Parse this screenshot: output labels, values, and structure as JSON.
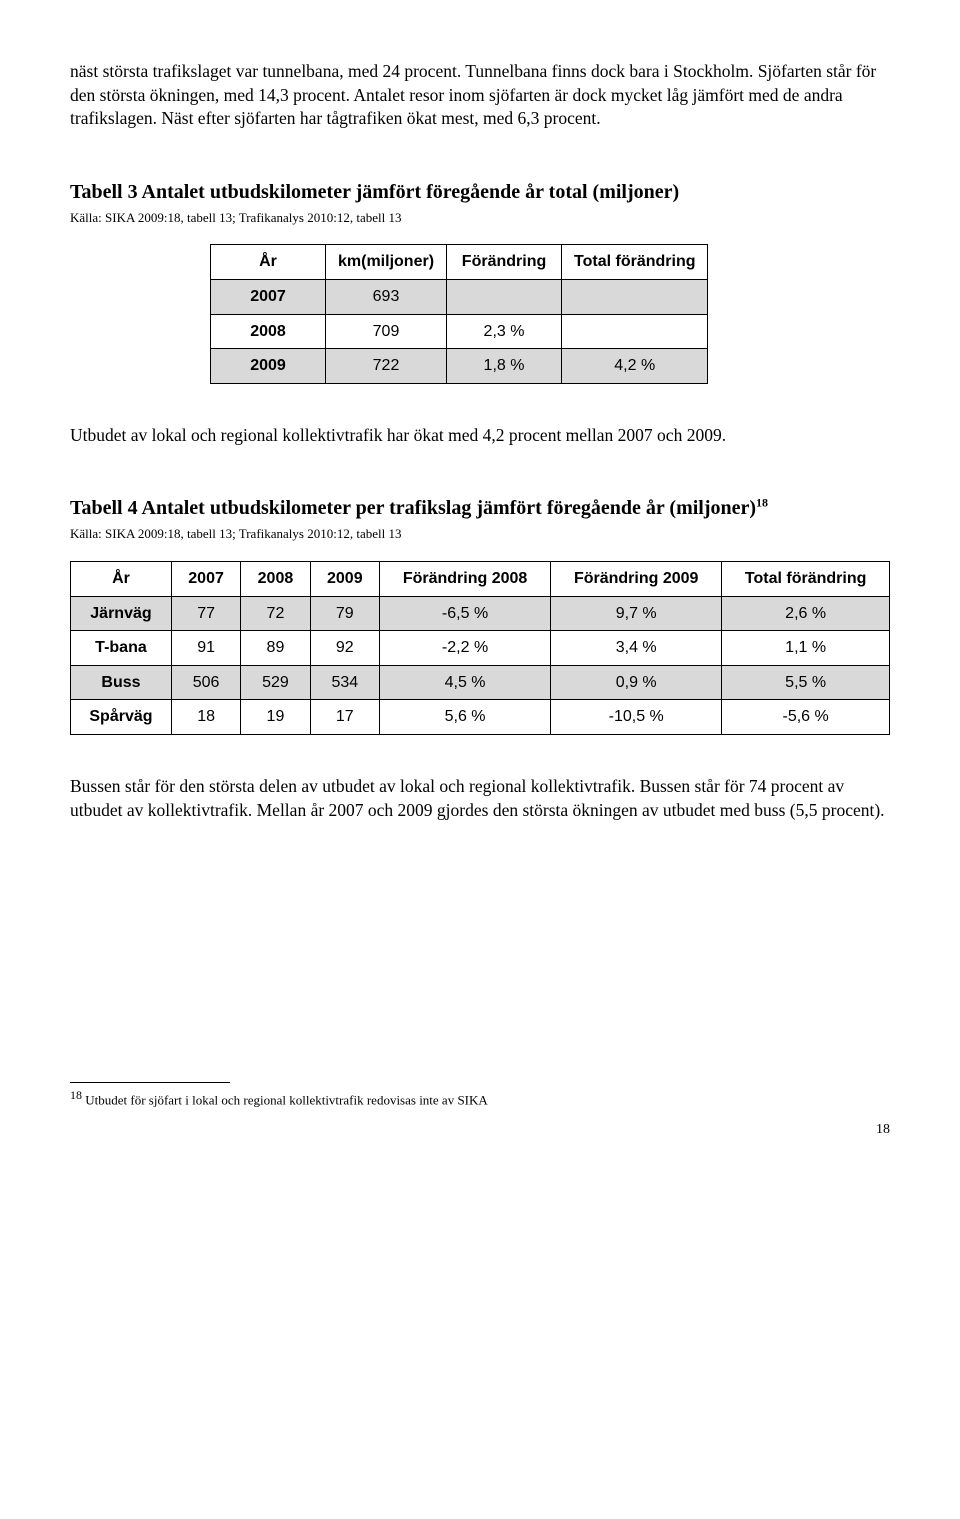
{
  "intro_para": "näst största trafikslaget var tunnelbana, med 24 procent. Tunnelbana finns dock bara i Stockholm. Sjöfarten står för den största ökningen, med 14,3 procent. Antalet resor inom sjöfarten är dock mycket låg jämfört med de andra trafikslagen. Näst efter sjöfarten har tågtrafiken ökat mest, med 6,3 procent.",
  "table3": {
    "title": "Tabell 3 Antalet utbudskilometer jämfört föregående år total (miljoner)",
    "source": "Källa: SIKA 2009:18, tabell 13; Trafikanalys 2010:12, tabell 13",
    "headers": [
      "År",
      "km(miljoner)",
      "Förändring",
      "Total förändring"
    ],
    "rows": [
      {
        "year": "2007",
        "km": "693",
        "change": "",
        "total": "",
        "shaded": true
      },
      {
        "year": "2008",
        "km": "709",
        "change": "2,3 %",
        "total": ""
      },
      {
        "year": "2009",
        "km": "722",
        "change": "1,8 %",
        "total": "4,2 %",
        "shaded": true
      }
    ]
  },
  "mid_para": "Utbudet av lokal och regional kollektivtrafik har ökat med 4,2 procent mellan 2007 och 2009.",
  "table4": {
    "title": "Tabell 4 Antalet utbudskilometer per trafikslag jämfört föregående år (miljoner)",
    "sup": "18",
    "source": "Källa: SIKA 2009:18, tabell 13; Trafikanalys 2010:12, tabell 13",
    "headers": [
      "År",
      "2007",
      "2008",
      "2009",
      "Förändring 2008",
      "Förändring 2009",
      "Total förändring"
    ],
    "rows": [
      {
        "label": "Järnväg",
        "v": [
          "77",
          "72",
          "79",
          "-6,5 %",
          "9,7 %",
          "2,6 %"
        ],
        "shaded": true
      },
      {
        "label": "T-bana",
        "v": [
          "91",
          "89",
          "92",
          "-2,2 %",
          "3,4 %",
          "1,1 %"
        ]
      },
      {
        "label": "Buss",
        "v": [
          "506",
          "529",
          "534",
          "4,5 %",
          "0,9 %",
          "5,5 %"
        ],
        "shaded": true
      },
      {
        "label": "Spårväg",
        "v": [
          "18",
          "19",
          "17",
          "5,6 %",
          "-10,5 %",
          "-5,6 %"
        ]
      }
    ]
  },
  "closing_para": "Bussen står för den största delen av utbudet av lokal och regional kollektivtrafik. Bussen står för 74 procent av utbudet av kollektivtrafik. Mellan år 2007 och 2009 gjordes den största ökningen av utbudet med buss (5,5 procent).",
  "footnote": {
    "num": "18",
    "text": " Utbudet för sjöfart i lokal och regional kollektivtrafik redovisas inte av SIKA"
  },
  "page_number": "18"
}
